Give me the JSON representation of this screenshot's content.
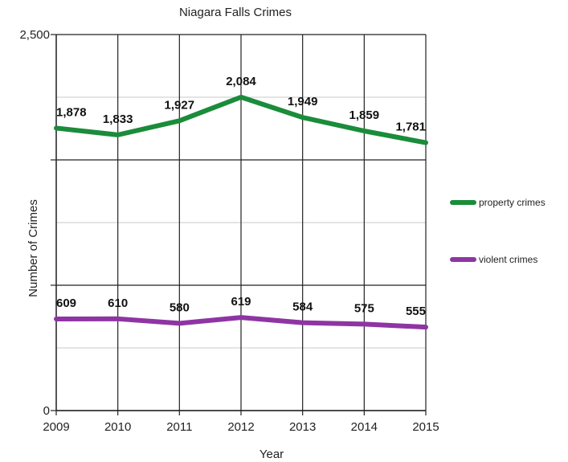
{
  "chart_data": {
    "type": "line",
    "title": "Niagara Falls Crimes",
    "xlabel": "Year",
    "ylabel": "Number of Crimes",
    "x": [
      "2009",
      "2010",
      "2011",
      "2012",
      "2013",
      "2014",
      "2015"
    ],
    "ylim": [
      0,
      2500
    ],
    "y_tick_labels": [
      "0",
      "",
      "",
      "2,500"
    ],
    "grid": true,
    "legend_position": "right",
    "series": [
      {
        "name": "property crimes",
        "color": "#1a8c3a",
        "values": [
          1878,
          1833,
          1927,
          2084,
          1949,
          1859,
          1781
        ],
        "labels": [
          "1,878",
          "1,833",
          "1,927",
          "2,084",
          "1,949",
          "1,859",
          "1,781"
        ]
      },
      {
        "name": "violent crimes",
        "color": "#8e35a3",
        "values": [
          609,
          610,
          580,
          619,
          584,
          575,
          555
        ],
        "labels": [
          "609",
          "610",
          "580",
          "619",
          "584",
          "575",
          "555"
        ]
      }
    ]
  }
}
